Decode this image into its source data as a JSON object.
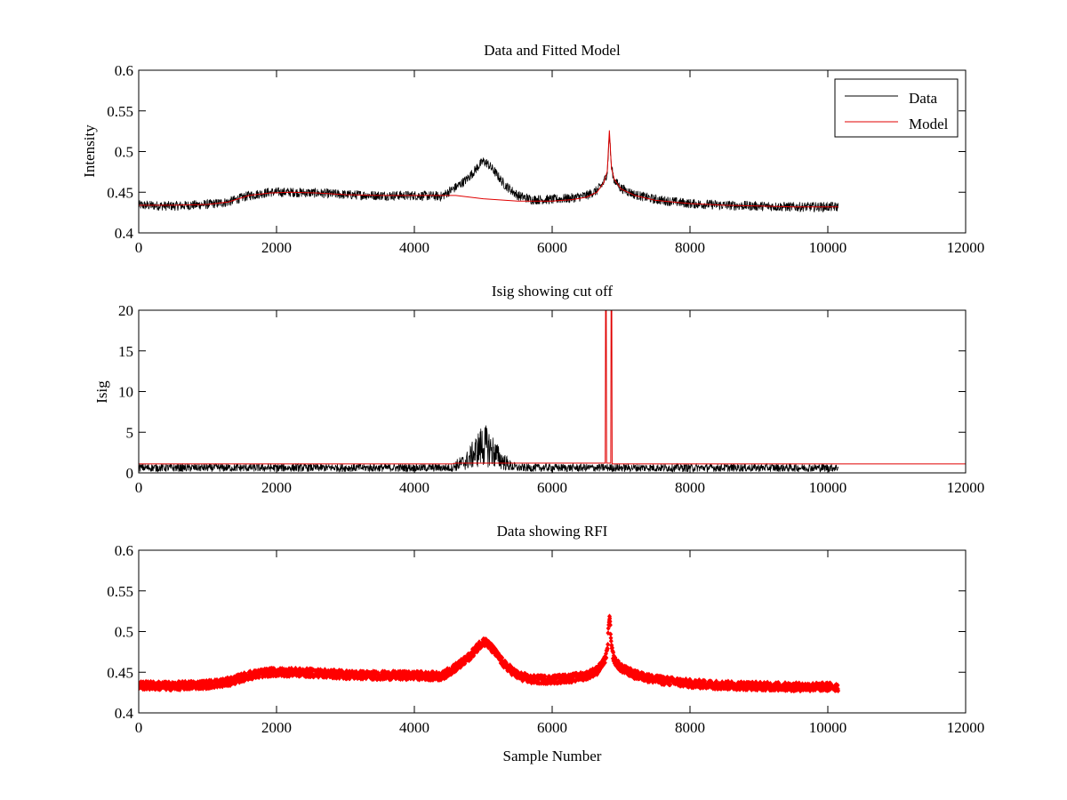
{
  "chart_data": [
    {
      "type": "line",
      "title": "Data and Fitted Model",
      "xlabel": "",
      "ylabel": "Intensity",
      "xlim": [
        0,
        12000
      ],
      "ylim": [
        0.4,
        0.6
      ],
      "xticks": [
        0,
        2000,
        4000,
        6000,
        8000,
        10000,
        12000
      ],
      "xtick_labels": [
        "0",
        "2000",
        "4000",
        "6000",
        "8000",
        "10000",
        "12000"
      ],
      "yticks": [
        0.4,
        0.45,
        0.5,
        0.55,
        0.6
      ],
      "ytick_labels": [
        "0.4",
        "0.45",
        "0.5",
        "0.55",
        "0.6"
      ],
      "legend": {
        "placement": "top-right",
        "entries": [
          "Data",
          "Model"
        ]
      },
      "series": [
        {
          "name": "Data",
          "color": "#000000",
          "style": "noisy-line",
          "noise": 0.006,
          "x": [
            0,
            500,
            1000,
            1300,
            1600,
            1900,
            2200,
            2600,
            3000,
            3500,
            4000,
            4400,
            4600,
            4750,
            4850,
            4950,
            5000,
            5050,
            5150,
            5300,
            5500,
            5700,
            6000,
            6300,
            6500,
            6650,
            6750,
            6800,
            6830,
            6860,
            6900,
            7000,
            7200,
            7500,
            8000,
            8500,
            9000,
            9500,
            10000,
            10150
          ],
          "y": [
            0.434,
            0.433,
            0.435,
            0.438,
            0.446,
            0.45,
            0.45,
            0.449,
            0.447,
            0.446,
            0.446,
            0.445,
            0.456,
            0.465,
            0.474,
            0.484,
            0.488,
            0.486,
            0.477,
            0.46,
            0.446,
            0.441,
            0.441,
            0.443,
            0.446,
            0.452,
            0.462,
            0.475,
            0.522,
            0.48,
            0.465,
            0.455,
            0.447,
            0.441,
            0.436,
            0.434,
            0.433,
            0.432,
            0.432,
            0.432
          ]
        },
        {
          "name": "Model",
          "color": "#e00000",
          "style": "line",
          "x": [
            0,
            500,
            1000,
            1300,
            1600,
            1900,
            2200,
            2600,
            3000,
            3500,
            4000,
            4400,
            4600,
            5000,
            5500,
            6000,
            6300,
            6500,
            6650,
            6750,
            6800,
            6830,
            6860,
            6900,
            7000,
            7200,
            7500,
            8000,
            8500,
            9000,
            9500,
            10000,
            10150
          ],
          "y": [
            0.434,
            0.434,
            0.435,
            0.438,
            0.446,
            0.449,
            0.45,
            0.449,
            0.447,
            0.446,
            0.446,
            0.446,
            0.446,
            0.442,
            0.439,
            0.439,
            0.441,
            0.444,
            0.45,
            0.462,
            0.476,
            0.526,
            0.48,
            0.466,
            0.454,
            0.446,
            0.44,
            0.436,
            0.434,
            0.433,
            0.432,
            0.432,
            0.432
          ]
        }
      ]
    },
    {
      "type": "line",
      "title": "Isig showing cut off",
      "xlabel": "",
      "ylabel": "Isig",
      "xlim": [
        0,
        12000
      ],
      "ylim": [
        0,
        20
      ],
      "xticks": [
        0,
        2000,
        4000,
        6000,
        8000,
        10000,
        12000
      ],
      "xtick_labels": [
        "0",
        "2000",
        "4000",
        "6000",
        "8000",
        "10000",
        "12000"
      ],
      "yticks": [
        0,
        5,
        10,
        15,
        20
      ],
      "ytick_labels": [
        "0",
        "5",
        "10",
        "15",
        "20"
      ],
      "series": [
        {
          "color": "#000000",
          "style": "noisy-band",
          "x": [
            0,
            2000,
            4000,
            4550,
            4600,
            4750,
            4900,
            5000,
            5100,
            5250,
            5400,
            5500,
            7000,
            9000,
            10150
          ],
          "y": [
            0.9,
            0.9,
            0.9,
            0.9,
            1.3,
            2.0,
            3.8,
            5.0,
            4.2,
            2.4,
            1.2,
            0.9,
            0.9,
            0.9,
            0.9
          ]
        },
        {
          "color": "#e00000",
          "style": "cutoff-line",
          "x": [
            0,
            4550,
            4600,
            6770,
            6775,
            6785,
            6790,
            6850,
            6855,
            6865,
            6870,
            12000
          ],
          "y": [
            1.1,
            1.1,
            1.2,
            1.2,
            20,
            20,
            1.2,
            1.2,
            20,
            20,
            1.1,
            1.1
          ]
        }
      ]
    },
    {
      "type": "scatter",
      "title": "Data showing RFI",
      "xlabel": "Sample Number",
      "ylabel": "",
      "xlim": [
        0,
        12000
      ],
      "ylim": [
        0.4,
        0.6
      ],
      "xticks": [
        0,
        2000,
        4000,
        6000,
        8000,
        10000,
        12000
      ],
      "xtick_labels": [
        "0",
        "2000",
        "4000",
        "6000",
        "8000",
        "10000",
        "12000"
      ],
      "yticks": [
        0.4,
        0.45,
        0.5,
        0.55,
        0.6
      ],
      "ytick_labels": [
        "0.4",
        "0.45",
        "0.5",
        "0.55",
        "0.6"
      ],
      "series": [
        {
          "color": "#ff0000",
          "style": "markers",
          "noise": 0.005,
          "x": [
            0,
            500,
            1000,
            1300,
            1600,
            1900,
            2200,
            2600,
            3000,
            3500,
            4000,
            4400,
            4600,
            4750,
            4850,
            4950,
            5000,
            5050,
            5150,
            5300,
            5500,
            5700,
            6000,
            6300,
            6500,
            6650,
            6750,
            6800,
            6830,
            6860,
            6900,
            7000,
            7200,
            7500,
            8000,
            8500,
            9000,
            9500,
            10000,
            10150
          ],
          "y": [
            0.434,
            0.433,
            0.435,
            0.438,
            0.446,
            0.45,
            0.45,
            0.449,
            0.447,
            0.446,
            0.446,
            0.445,
            0.456,
            0.465,
            0.474,
            0.484,
            0.488,
            0.486,
            0.477,
            0.46,
            0.446,
            0.441,
            0.441,
            0.443,
            0.446,
            0.452,
            0.462,
            0.475,
            0.522,
            0.48,
            0.465,
            0.455,
            0.447,
            0.441,
            0.436,
            0.434,
            0.433,
            0.432,
            0.432,
            0.432
          ]
        }
      ]
    }
  ]
}
